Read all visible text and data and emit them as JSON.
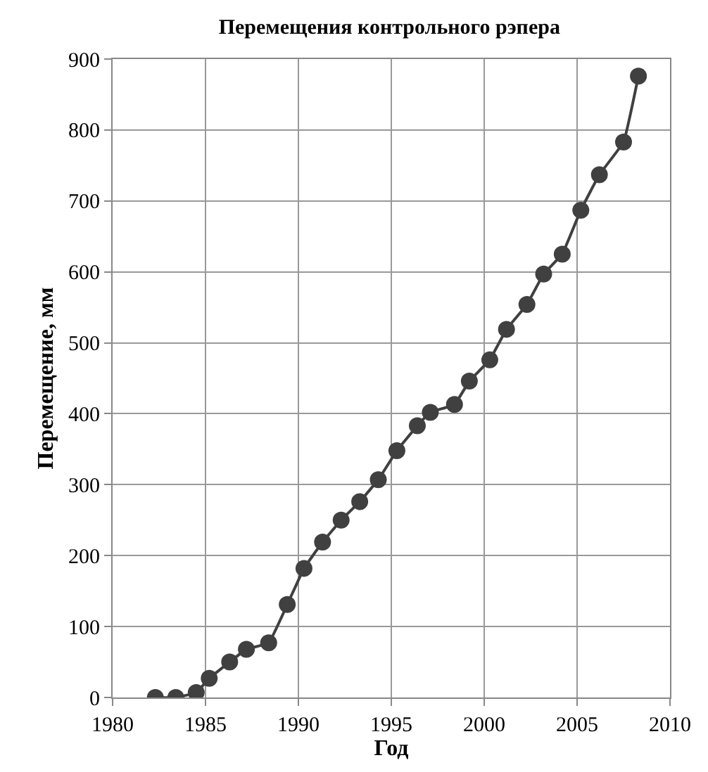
{
  "chart_data": {
    "type": "line",
    "title": "Перемещения контрольного рэпера",
    "xlabel": "Год",
    "ylabel": "Перемещение, мм",
    "x": [
      1982.3,
      1983.4,
      1984.5,
      1985.2,
      1986.3,
      1987.2,
      1988.4,
      1989.4,
      1990.3,
      1991.3,
      1992.3,
      1993.3,
      1994.3,
      1995.3,
      1996.4,
      1997.1,
      1998.4,
      1999.2,
      2000.3,
      2001.2,
      2002.3,
      2003.2,
      2004.2,
      2005.2,
      2006.2,
      2007.5,
      2008.3
    ],
    "series": [
      {
        "color": "#404040",
        "values": [
          0,
          0,
          7,
          27,
          50,
          68,
          77,
          131,
          182,
          219,
          250,
          276,
          307,
          348,
          383,
          402,
          413,
          446,
          476,
          519,
          554,
          597,
          625,
          687,
          737,
          783,
          876
        ]
      }
    ],
    "xlim": [
      1980,
      2010
    ],
    "xticks": [
      1980,
      1985,
      1990,
      1995,
      2000,
      2005,
      2010
    ],
    "ylim": [
      0,
      900
    ],
    "yticks": [
      0,
      100,
      200,
      300,
      400,
      500,
      600,
      700,
      800,
      900
    ],
    "grid": true,
    "marker": "circle",
    "line_style": "solid",
    "legend": false
  }
}
